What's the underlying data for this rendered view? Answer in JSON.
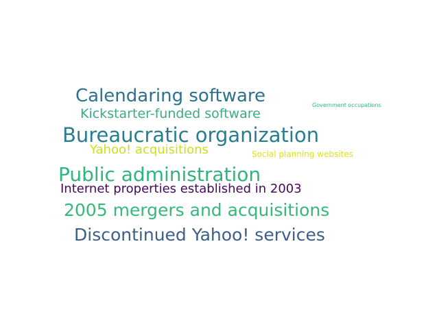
{
  "words": [
    {
      "text": "Calendaring software",
      "color": "#2c728e"
    },
    {
      "text": "Kickstarter-funded software",
      "color": "#3bab85"
    },
    {
      "text": "Government occupations",
      "color": "#2fb47c"
    },
    {
      "text": "Bureaucratic organization",
      "color": "#287d8e"
    },
    {
      "text": "Yahoo! acquisitions",
      "color": "#c8e020"
    },
    {
      "text": "Social planning websites",
      "color": "#dde318"
    },
    {
      "text": "Public administration",
      "color": "#2fb47c"
    },
    {
      "text": "Internet properties established in 2003",
      "color": "#46085c"
    },
    {
      "text": "2005 mergers and acquisitions",
      "color": "#37b878"
    },
    {
      "text": "Discontinued Yahoo! services",
      "color": "#3b5f8a"
    }
  ]
}
